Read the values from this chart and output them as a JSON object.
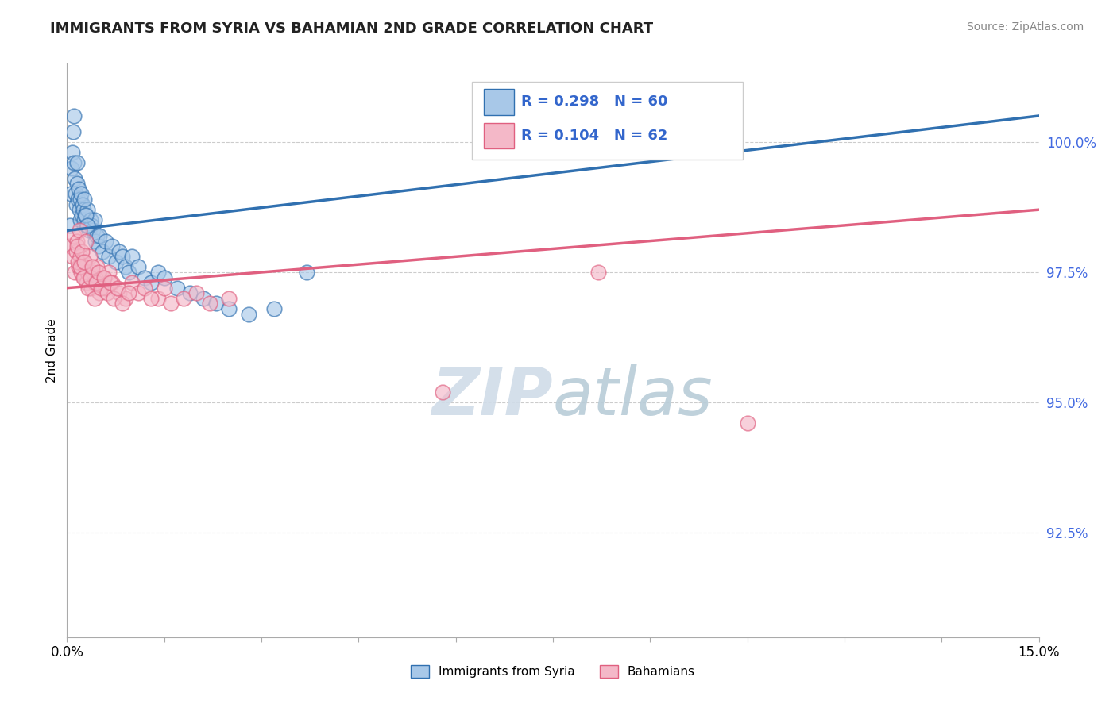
{
  "title": "IMMIGRANTS FROM SYRIA VS BAHAMIAN 2ND GRADE CORRELATION CHART",
  "source_text": "Source: ZipAtlas.com",
  "xlabel_blue": "Immigrants from Syria",
  "xlabel_pink": "Bahamians",
  "ylabel": "2nd Grade",
  "xlim": [
    0.0,
    15.0
  ],
  "ylim": [
    90.5,
    101.5
  ],
  "yticks": [
    92.5,
    95.0,
    97.5,
    100.0
  ],
  "ytick_labels": [
    "92.5%",
    "95.0%",
    "97.5%",
    "100.0%"
  ],
  "xticks": [
    0.0,
    1.5,
    3.0,
    4.5,
    6.0,
    7.5,
    9.0,
    10.5,
    12.0,
    13.5,
    15.0
  ],
  "xtick_labels": [
    "0.0%",
    "",
    "",
    "",
    "",
    "",
    "",
    "",
    "",
    "",
    "15.0%"
  ],
  "r_blue": 0.298,
  "n_blue": 60,
  "r_pink": 0.104,
  "n_pink": 62,
  "color_blue": "#a8c8e8",
  "color_pink": "#f4b8c8",
  "trend_blue": "#3070b0",
  "trend_pink": "#e06080",
  "blue_x": [
    0.05,
    0.06,
    0.07,
    0.08,
    0.09,
    0.1,
    0.11,
    0.12,
    0.13,
    0.14,
    0.15,
    0.16,
    0.17,
    0.18,
    0.19,
    0.2,
    0.21,
    0.22,
    0.23,
    0.24,
    0.25,
    0.27,
    0.28,
    0.3,
    0.32,
    0.34,
    0.36,
    0.38,
    0.4,
    0.42,
    0.44,
    0.46,
    0.48,
    0.5,
    0.55,
    0.6,
    0.65,
    0.7,
    0.75,
    0.8,
    0.85,
    0.9,
    0.95,
    1.0,
    1.1,
    1.2,
    1.3,
    1.4,
    1.5,
    1.7,
    1.9,
    2.1,
    2.3,
    2.5,
    2.8,
    3.2,
    0.26,
    0.29,
    0.31,
    3.7
  ],
  "blue_y": [
    98.4,
    99.0,
    99.5,
    99.8,
    100.2,
    100.5,
    99.6,
    99.3,
    99.0,
    98.8,
    99.2,
    99.6,
    98.9,
    99.1,
    98.7,
    98.5,
    98.9,
    99.0,
    98.6,
    98.8,
    98.7,
    98.5,
    98.6,
    98.4,
    98.7,
    98.3,
    98.5,
    98.4,
    98.3,
    98.5,
    98.1,
    98.2,
    98.0,
    98.2,
    97.9,
    98.1,
    97.8,
    98.0,
    97.7,
    97.9,
    97.8,
    97.6,
    97.5,
    97.8,
    97.6,
    97.4,
    97.3,
    97.5,
    97.4,
    97.2,
    97.1,
    97.0,
    96.9,
    96.8,
    96.7,
    96.8,
    98.9,
    98.6,
    98.4,
    97.5
  ],
  "pink_x": [
    0.05,
    0.08,
    0.1,
    0.12,
    0.14,
    0.16,
    0.18,
    0.2,
    0.22,
    0.24,
    0.26,
    0.28,
    0.3,
    0.32,
    0.35,
    0.38,
    0.4,
    0.43,
    0.46,
    0.5,
    0.55,
    0.6,
    0.65,
    0.7,
    0.8,
    0.9,
    1.0,
    1.1,
    1.2,
    1.4,
    1.6,
    1.8,
    2.0,
    2.2,
    2.5,
    0.15,
    0.17,
    0.19,
    0.21,
    0.23,
    0.25,
    0.27,
    0.29,
    0.33,
    0.36,
    0.39,
    0.42,
    0.45,
    0.48,
    0.52,
    0.57,
    0.62,
    0.67,
    0.72,
    0.78,
    0.85,
    0.95,
    1.3,
    1.5,
    5.8,
    8.2,
    10.5
  ],
  "pink_y": [
    98.0,
    97.8,
    98.2,
    97.5,
    97.9,
    98.1,
    97.6,
    97.8,
    97.5,
    97.7,
    97.4,
    97.6,
    97.3,
    97.5,
    97.8,
    97.2,
    97.5,
    97.3,
    97.6,
    97.1,
    97.4,
    97.2,
    97.5,
    97.3,
    97.1,
    97.0,
    97.3,
    97.1,
    97.2,
    97.0,
    96.9,
    97.0,
    97.1,
    96.9,
    97.0,
    98.0,
    97.7,
    98.3,
    97.6,
    97.9,
    97.4,
    97.7,
    98.1,
    97.2,
    97.4,
    97.6,
    97.0,
    97.3,
    97.5,
    97.2,
    97.4,
    97.1,
    97.3,
    97.0,
    97.2,
    96.9,
    97.1,
    97.0,
    97.2,
    95.2,
    97.5,
    94.6
  ]
}
